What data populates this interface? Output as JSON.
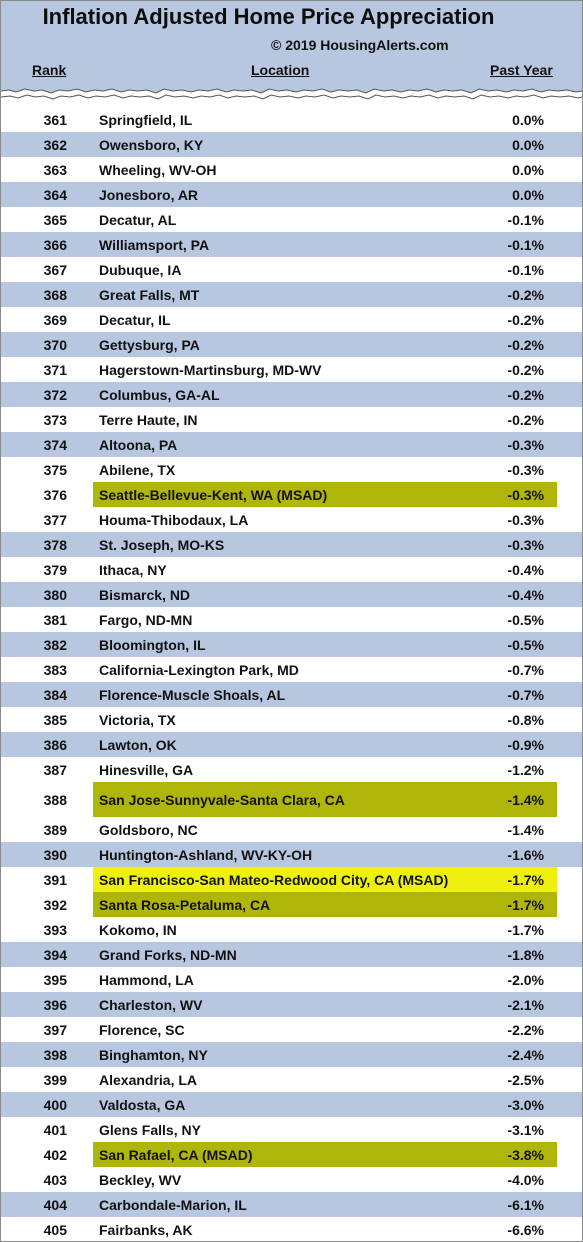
{
  "title": "Inflation Adjusted Home Price Appreciation",
  "copyright": "© 2019 HousingAlerts.com",
  "columns": {
    "rank": "Rank",
    "location": "Location",
    "change": "Past Year"
  },
  "colors": {
    "band": "#b8c7e0",
    "highlight": "#b0b50a",
    "highlight_bright": "#eef00e"
  },
  "rows": [
    {
      "rank": "361",
      "location": "Springfield, IL",
      "change": "0.0%",
      "style": "plain"
    },
    {
      "rank": "362",
      "location": "Owensboro, KY",
      "change": "0.0%",
      "style": "band"
    },
    {
      "rank": "363",
      "location": "Wheeling, WV-OH",
      "change": "0.0%",
      "style": "plain"
    },
    {
      "rank": "364",
      "location": "Jonesboro, AR",
      "change": "0.0%",
      "style": "band"
    },
    {
      "rank": "365",
      "location": "Decatur, AL",
      "change": "-0.1%",
      "style": "plain"
    },
    {
      "rank": "366",
      "location": "Williamsport, PA",
      "change": "-0.1%",
      "style": "band"
    },
    {
      "rank": "367",
      "location": "Dubuque, IA",
      "change": "-0.1%",
      "style": "plain"
    },
    {
      "rank": "368",
      "location": "Great Falls, MT",
      "change": "-0.2%",
      "style": "band"
    },
    {
      "rank": "369",
      "location": "Decatur, IL",
      "change": "-0.2%",
      "style": "plain"
    },
    {
      "rank": "370",
      "location": "Gettysburg, PA",
      "change": "-0.2%",
      "style": "band"
    },
    {
      "rank": "371",
      "location": "Hagerstown-Martinsburg, MD-WV",
      "change": "-0.2%",
      "style": "plain"
    },
    {
      "rank": "372",
      "location": "Columbus, GA-AL",
      "change": "-0.2%",
      "style": "band"
    },
    {
      "rank": "373",
      "location": "Terre Haute, IN",
      "change": "-0.2%",
      "style": "plain"
    },
    {
      "rank": "374",
      "location": "Altoona, PA",
      "change": "-0.3%",
      "style": "band"
    },
    {
      "rank": "375",
      "location": "Abilene, TX",
      "change": "-0.3%",
      "style": "plain"
    },
    {
      "rank": "376",
      "location": "Seattle-Bellevue-Kent, WA (MSAD)",
      "change": "-0.3%",
      "style": "hl"
    },
    {
      "rank": "377",
      "location": "Houma-Thibodaux, LA",
      "change": "-0.3%",
      "style": "plain"
    },
    {
      "rank": "378",
      "location": "St. Joseph, MO-KS",
      "change": "-0.3%",
      "style": "band"
    },
    {
      "rank": "379",
      "location": "Ithaca, NY",
      "change": "-0.4%",
      "style": "plain"
    },
    {
      "rank": "380",
      "location": "Bismarck, ND",
      "change": "-0.4%",
      "style": "band"
    },
    {
      "rank": "381",
      "location": "Fargo, ND-MN",
      "change": "-0.5%",
      "style": "plain"
    },
    {
      "rank": "382",
      "location": "Bloomington, IL",
      "change": "-0.5%",
      "style": "band"
    },
    {
      "rank": "383",
      "location": "California-Lexington Park, MD",
      "change": "-0.7%",
      "style": "plain"
    },
    {
      "rank": "384",
      "location": "Florence-Muscle Shoals, AL",
      "change": "-0.7%",
      "style": "band"
    },
    {
      "rank": "385",
      "location": "Victoria, TX",
      "change": "-0.8%",
      "style": "plain"
    },
    {
      "rank": "386",
      "location": "Lawton, OK",
      "change": "-0.9%",
      "style": "band"
    },
    {
      "rank": "387",
      "location": "Hinesville, GA",
      "change": "-1.2%",
      "style": "plain"
    },
    {
      "rank": "388",
      "location": "San Jose-Sunnyvale-Santa Clara, CA",
      "change": "-1.4%",
      "style": "hl-tall"
    },
    {
      "rank": "389",
      "location": "Goldsboro, NC",
      "change": "-1.4%",
      "style": "plain"
    },
    {
      "rank": "390",
      "location": "Huntington-Ashland, WV-KY-OH",
      "change": "-1.6%",
      "style": "band"
    },
    {
      "rank": "391",
      "location": "San Francisco-San Mateo-Redwood City, CA (MSAD)",
      "change": "-1.7%",
      "style": "hl-bright"
    },
    {
      "rank": "392",
      "location": "Santa Rosa-Petaluma, CA",
      "change": "-1.7%",
      "style": "hl"
    },
    {
      "rank": "393",
      "location": "Kokomo, IN",
      "change": "-1.7%",
      "style": "plain"
    },
    {
      "rank": "394",
      "location": "Grand Forks, ND-MN",
      "change": "-1.8%",
      "style": "band"
    },
    {
      "rank": "395",
      "location": "Hammond, LA",
      "change": "-2.0%",
      "style": "plain"
    },
    {
      "rank": "396",
      "location": "Charleston, WV",
      "change": "-2.1%",
      "style": "band"
    },
    {
      "rank": "397",
      "location": "Florence, SC",
      "change": "-2.2%",
      "style": "plain"
    },
    {
      "rank": "398",
      "location": "Binghamton, NY",
      "change": "-2.4%",
      "style": "band"
    },
    {
      "rank": "399",
      "location": "Alexandria, LA",
      "change": "-2.5%",
      "style": "plain"
    },
    {
      "rank": "400",
      "location": "Valdosta, GA",
      "change": "-3.0%",
      "style": "band"
    },
    {
      "rank": "401",
      "location": "Glens Falls, NY",
      "change": "-3.1%",
      "style": "plain"
    },
    {
      "rank": "402",
      "location": "San Rafael, CA (MSAD)",
      "change": "-3.8%",
      "style": "hl"
    },
    {
      "rank": "403",
      "location": "Beckley, WV",
      "change": "-4.0%",
      "style": "plain"
    },
    {
      "rank": "404",
      "location": "Carbondale-Marion, IL",
      "change": "-6.1%",
      "style": "band"
    },
    {
      "rank": "405",
      "location": "Fairbanks, AK",
      "change": "-6.6%",
      "style": "plain"
    }
  ]
}
